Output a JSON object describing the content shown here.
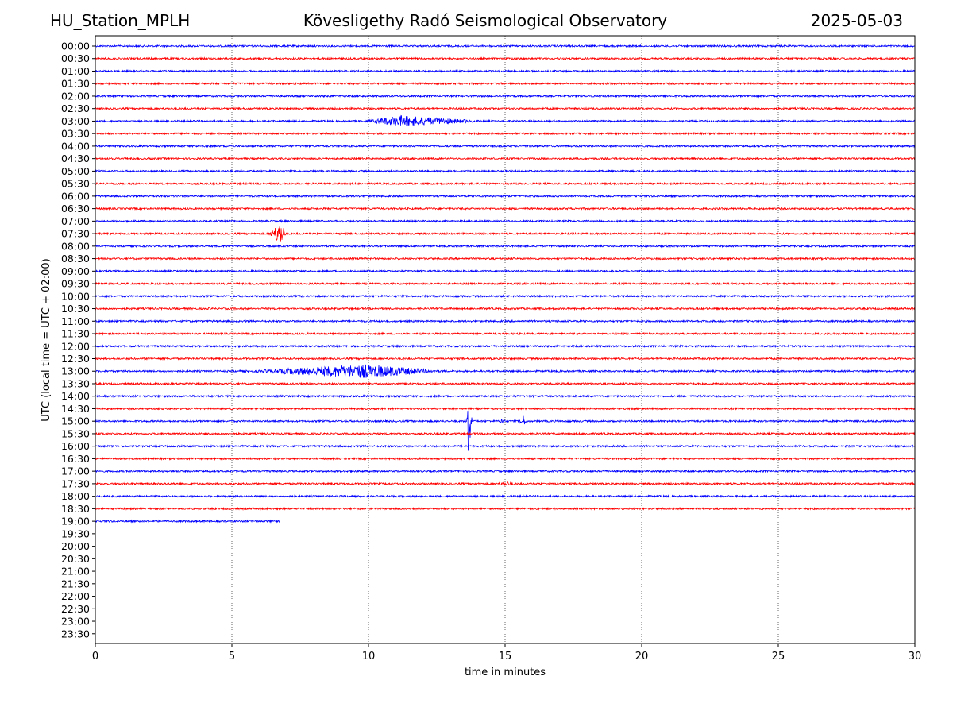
{
  "header": {
    "station": "HU_Station_MPLH",
    "title": "Kövesligethy Radó Seismological Observatory",
    "date": "2025-05-03"
  },
  "chart_data": {
    "type": "line",
    "title": "Kövesligethy Radó Seismological Observatory",
    "xlabel": "time in minutes",
    "ylabel": "UTC (local time = UTC + 02:00)",
    "xlim": [
      0,
      30
    ],
    "x_ticks": [
      "0",
      "5",
      "10",
      "15",
      "20",
      "25",
      "30"
    ],
    "grid": "vertical dotted at x ticks",
    "colors": {
      "even_rows": "#0000ff",
      "odd_rows": "#ff0000"
    },
    "row_labels": [
      "00:00",
      "00:30",
      "01:00",
      "01:30",
      "02:00",
      "02:30",
      "03:00",
      "03:30",
      "04:00",
      "04:30",
      "05:00",
      "05:30",
      "06:00",
      "06:30",
      "07:00",
      "07:30",
      "08:00",
      "08:30",
      "09:00",
      "09:30",
      "10:00",
      "10:30",
      "11:00",
      "11:30",
      "12:00",
      "12:30",
      "13:00",
      "13:30",
      "14:00",
      "14:30",
      "15:00",
      "15:30",
      "16:00",
      "16:30",
      "17:00",
      "17:30",
      "18:00",
      "18:30",
      "19:00",
      "19:30",
      "20:00",
      "20:30",
      "21:00",
      "21:30",
      "22:00",
      "22:30",
      "23:00",
      "23:30"
    ],
    "traces": [
      {
        "row": "00:00",
        "end_min": 30
      },
      {
        "row": "00:30",
        "end_min": 30
      },
      {
        "row": "01:00",
        "end_min": 30
      },
      {
        "row": "01:30",
        "end_min": 30
      },
      {
        "row": "02:00",
        "end_min": 30
      },
      {
        "row": "02:30",
        "end_min": 30
      },
      {
        "row": "03:00",
        "end_min": 30,
        "events": [
          {
            "start_min": 9.7,
            "end_min": 14.5,
            "peak_min": 11.2,
            "amplitude": 7
          }
        ]
      },
      {
        "row": "03:30",
        "end_min": 30
      },
      {
        "row": "04:00",
        "end_min": 30
      },
      {
        "row": "04:30",
        "end_min": 30
      },
      {
        "row": "05:00",
        "end_min": 30
      },
      {
        "row": "05:30",
        "end_min": 30
      },
      {
        "row": "06:00",
        "end_min": 30
      },
      {
        "row": "06:30",
        "end_min": 30
      },
      {
        "row": "07:00",
        "end_min": 30
      },
      {
        "row": "07:30",
        "end_min": 30,
        "events": [
          {
            "start_min": 6.3,
            "end_min": 7.0,
            "peak_min": 6.8,
            "amplitude": 14
          }
        ]
      },
      {
        "row": "08:00",
        "end_min": 30
      },
      {
        "row": "08:30",
        "end_min": 30
      },
      {
        "row": "09:00",
        "end_min": 30
      },
      {
        "row": "09:30",
        "end_min": 30
      },
      {
        "row": "10:00",
        "end_min": 30
      },
      {
        "row": "10:30",
        "end_min": 30
      },
      {
        "row": "11:00",
        "end_min": 30
      },
      {
        "row": "11:30",
        "end_min": 30
      },
      {
        "row": "12:00",
        "end_min": 30
      },
      {
        "row": "12:30",
        "end_min": 30
      },
      {
        "row": "13:00",
        "end_min": 30,
        "events": [
          {
            "start_min": 5.2,
            "end_min": 13.0,
            "peak_min": 9.8,
            "amplitude": 9
          }
        ]
      },
      {
        "row": "13:30",
        "end_min": 30
      },
      {
        "row": "14:00",
        "end_min": 30
      },
      {
        "row": "14:30",
        "end_min": 30
      },
      {
        "row": "15:00",
        "end_min": 30,
        "events": [
          {
            "start_min": 13.6,
            "end_min": 13.8,
            "peak_min": 13.65,
            "amplitude": 46
          },
          {
            "start_min": 14.8,
            "end_min": 15.0,
            "peak_min": 14.9,
            "amplitude": 6
          },
          {
            "start_min": 15.5,
            "end_min": 15.8,
            "peak_min": 15.65,
            "amplitude": 8
          }
        ]
      },
      {
        "row": "15:30",
        "end_min": 30
      },
      {
        "row": "16:00",
        "end_min": 30
      },
      {
        "row": "16:30",
        "end_min": 30
      },
      {
        "row": "17:00",
        "end_min": 30
      },
      {
        "row": "17:30",
        "end_min": 30,
        "events": [
          {
            "start_min": 14.5,
            "end_min": 15.5,
            "peak_min": 15.1,
            "amplitude": 3
          }
        ]
      },
      {
        "row": "18:00",
        "end_min": 30
      },
      {
        "row": "18:30",
        "end_min": 30
      },
      {
        "row": "19:00",
        "end_min": 6.75
      }
    ]
  }
}
